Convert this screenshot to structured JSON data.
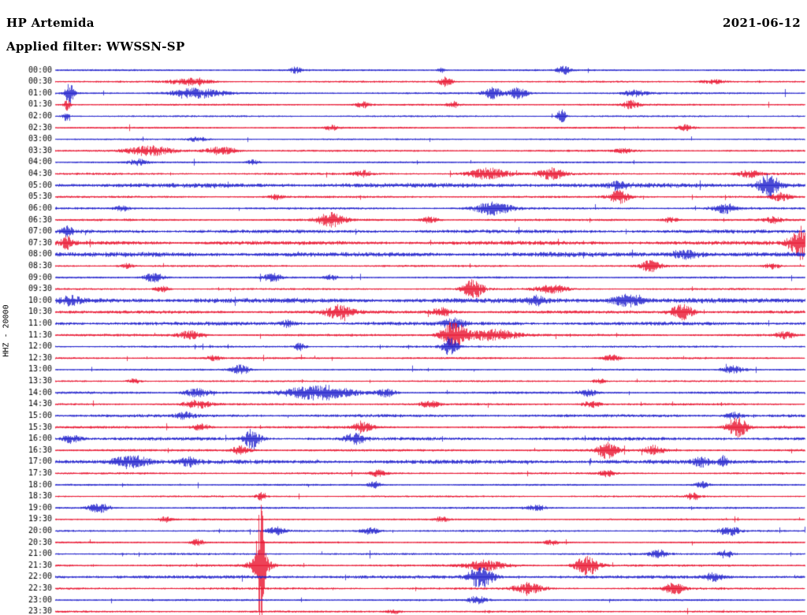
{
  "header": {
    "station": "HP Artemida",
    "date": "2021-06-12",
    "filter_label": "Applied filter: WWSSN-SP"
  },
  "axis": {
    "channel_label": "HHZ - 20000"
  },
  "chart_data": {
    "type": "line",
    "subtype": "helicorder-seismogram",
    "title": "HP Artemida 2021-06-12 HHZ helicorder, filter WWSSN-SP",
    "row_duration_min": 30,
    "palette": {
      "blue": "#2020cc",
      "red": "#e8112d"
    },
    "rows": [
      {
        "time": "00:00",
        "color": "blue",
        "noise": 1.0,
        "events": [
          [
            375,
            4,
            5
          ],
          [
            560,
            3,
            4
          ],
          [
            715,
            5,
            6
          ]
        ]
      },
      {
        "time": "00:30",
        "color": "red",
        "noise": 1.0,
        "events": [
          [
            240,
            4,
            18
          ],
          [
            565,
            6,
            6
          ],
          [
            905,
            3,
            12
          ]
        ]
      },
      {
        "time": "01:00",
        "color": "blue",
        "noise": 1.1,
        "events": [
          [
            88,
            13,
            4
          ],
          [
            250,
            6,
            22
          ],
          [
            625,
            7,
            8
          ],
          [
            657,
            7,
            8
          ],
          [
            805,
            4,
            10
          ]
        ]
      },
      {
        "time": "01:30",
        "color": "red",
        "noise": 1.0,
        "events": [
          [
            85,
            7,
            3
          ],
          [
            460,
            4,
            6
          ],
          [
            575,
            4,
            5
          ],
          [
            800,
            5,
            8
          ]
        ]
      },
      {
        "time": "02:00",
        "color": "blue",
        "noise": 1.0,
        "events": [
          [
            83,
            6,
            3
          ],
          [
            712,
            9,
            4
          ]
        ]
      },
      {
        "time": "02:30",
        "color": "red",
        "noise": 1.0,
        "events": [
          [
            420,
            3,
            6
          ],
          [
            870,
            4,
            8
          ]
        ]
      },
      {
        "time": "03:00",
        "color": "blue",
        "noise": 0.9,
        "events": [
          [
            250,
            3,
            8
          ]
        ]
      },
      {
        "time": "03:30",
        "color": "red",
        "noise": 1.1,
        "events": [
          [
            190,
            6,
            20
          ],
          [
            280,
            5,
            14
          ],
          [
            790,
            3,
            8
          ]
        ]
      },
      {
        "time": "04:00",
        "color": "blue",
        "noise": 1.0,
        "events": [
          [
            175,
            4,
            8
          ],
          [
            320,
            3,
            6
          ]
        ]
      },
      {
        "time": "04:30",
        "color": "red",
        "noise": 1.2,
        "events": [
          [
            460,
            4,
            8
          ],
          [
            620,
            7,
            18
          ],
          [
            700,
            7,
            12
          ],
          [
            950,
            4,
            10
          ]
        ]
      },
      {
        "time": "05:00",
        "color": "blue",
        "noise": 2.4,
        "events": [
          [
            785,
            5,
            8
          ],
          [
            975,
            15,
            9
          ]
        ]
      },
      {
        "time": "05:30",
        "color": "red",
        "noise": 1.2,
        "events": [
          [
            350,
            3,
            6
          ],
          [
            785,
            8,
            9
          ],
          [
            990,
            5,
            8
          ]
        ]
      },
      {
        "time": "06:00",
        "color": "blue",
        "noise": 1.2,
        "events": [
          [
            155,
            3,
            6
          ],
          [
            625,
            8,
            16
          ],
          [
            920,
            6,
            10
          ]
        ]
      },
      {
        "time": "06:30",
        "color": "red",
        "noise": 1.2,
        "events": [
          [
            420,
            9,
            12
          ],
          [
            545,
            4,
            8
          ],
          [
            850,
            3,
            8
          ],
          [
            980,
            4,
            8
          ]
        ]
      },
      {
        "time": "07:00",
        "color": "blue",
        "noise": 1.9,
        "events": [
          [
            85,
            6,
            5
          ]
        ]
      },
      {
        "time": "07:30",
        "color": "red",
        "noise": 2.1,
        "events": [
          [
            85,
            8,
            5
          ],
          [
            1015,
            21,
            9
          ]
        ]
      },
      {
        "time": "08:00",
        "color": "blue",
        "noise": 2.5,
        "events": [
          [
            870,
            5,
            14
          ]
        ]
      },
      {
        "time": "08:30",
        "color": "red",
        "noise": 1.1,
        "events": [
          [
            160,
            3,
            6
          ],
          [
            825,
            7,
            9
          ],
          [
            980,
            4,
            7
          ]
        ]
      },
      {
        "time": "09:00",
        "color": "blue",
        "noise": 1.1,
        "events": [
          [
            195,
            6,
            9
          ],
          [
            345,
            5,
            8
          ],
          [
            420,
            3,
            6
          ]
        ]
      },
      {
        "time": "09:30",
        "color": "red",
        "noise": 1.1,
        "events": [
          [
            205,
            4,
            6
          ],
          [
            600,
            12,
            9
          ],
          [
            700,
            5,
            14
          ]
        ]
      },
      {
        "time": "10:00",
        "color": "blue",
        "noise": 2.6,
        "events": [
          [
            90,
            5,
            8
          ],
          [
            680,
            5,
            8
          ],
          [
            795,
            7,
            14
          ]
        ]
      },
      {
        "time": "10:30",
        "color": "red",
        "noise": 1.7,
        "events": [
          [
            430,
            8,
            12
          ],
          [
            560,
            5,
            10
          ],
          [
            865,
            10,
            10
          ]
        ]
      },
      {
        "time": "11:00",
        "color": "blue",
        "noise": 2.0,
        "events": [
          [
            365,
            4,
            6
          ],
          [
            575,
            6,
            9
          ]
        ]
      },
      {
        "time": "11:30",
        "color": "red",
        "noise": 1.3,
        "events": [
          [
            240,
            5,
            10
          ],
          [
            575,
            17,
            11
          ],
          [
            625,
            7,
            22
          ],
          [
            995,
            4,
            8
          ]
        ]
      },
      {
        "time": "12:00",
        "color": "blue",
        "noise": 1.1,
        "events": [
          [
            380,
            5,
            5
          ],
          [
            570,
            12,
            7
          ]
        ]
      },
      {
        "time": "12:30",
        "color": "red",
        "noise": 1.1,
        "events": [
          [
            270,
            3,
            6
          ],
          [
            775,
            4,
            8
          ]
        ]
      },
      {
        "time": "13:00",
        "color": "blue",
        "noise": 1.0,
        "events": [
          [
            305,
            6,
            8
          ],
          [
            930,
            5,
            10
          ]
        ]
      },
      {
        "time": "13:30",
        "color": "red",
        "noise": 1.0,
        "events": [
          [
            170,
            3,
            6
          ],
          [
            760,
            3,
            6
          ]
        ]
      },
      {
        "time": "14:00",
        "color": "blue",
        "noise": 1.3,
        "events": [
          [
            250,
            5,
            12
          ],
          [
            405,
            9,
            30
          ],
          [
            490,
            5,
            8
          ],
          [
            745,
            4,
            8
          ]
        ]
      },
      {
        "time": "14:30",
        "color": "red",
        "noise": 1.2,
        "events": [
          [
            250,
            5,
            12
          ],
          [
            545,
            4,
            8
          ],
          [
            750,
            4,
            8
          ]
        ]
      },
      {
        "time": "15:00",
        "color": "blue",
        "noise": 1.6,
        "events": [
          [
            235,
            4,
            8
          ],
          [
            930,
            4,
            8
          ]
        ]
      },
      {
        "time": "15:30",
        "color": "red",
        "noise": 1.3,
        "events": [
          [
            255,
            4,
            8
          ],
          [
            460,
            6,
            9
          ],
          [
            935,
            12,
            9
          ]
        ]
      },
      {
        "time": "16:00",
        "color": "blue",
        "noise": 1.8,
        "events": [
          [
            90,
            5,
            8
          ],
          [
            320,
            13,
            7
          ],
          [
            450,
            6,
            9
          ]
        ]
      },
      {
        "time": "16:30",
        "color": "red",
        "noise": 1.3,
        "events": [
          [
            305,
            5,
            8
          ],
          [
            770,
            10,
            9
          ],
          [
            830,
            6,
            8
          ]
        ]
      },
      {
        "time": "17:00",
        "color": "blue",
        "noise": 2.2,
        "events": [
          [
            165,
            8,
            16
          ],
          [
            240,
            5,
            8
          ],
          [
            890,
            6,
            7
          ],
          [
            918,
            6,
            5
          ]
        ]
      },
      {
        "time": "17:30",
        "color": "red",
        "noise": 1.1,
        "events": [
          [
            480,
            4,
            7
          ],
          [
            770,
            4,
            6
          ]
        ]
      },
      {
        "time": "18:00",
        "color": "blue",
        "noise": 1.0,
        "events": [
          [
            475,
            4,
            6
          ],
          [
            890,
            4,
            6
          ]
        ]
      },
      {
        "time": "18:30",
        "color": "red",
        "noise": 1.0,
        "events": [
          [
            330,
            5,
            4
          ],
          [
            880,
            5,
            6
          ]
        ]
      },
      {
        "time": "19:00",
        "color": "blue",
        "noise": 1.1,
        "events": [
          [
            125,
            6,
            9
          ],
          [
            680,
            4,
            8
          ]
        ]
      },
      {
        "time": "19:30",
        "color": "red",
        "noise": 1.0,
        "events": [
          [
            210,
            3,
            6
          ],
          [
            560,
            3,
            6
          ]
        ]
      },
      {
        "time": "20:00",
        "color": "blue",
        "noise": 1.1,
        "events": [
          [
            350,
            5,
            8
          ],
          [
            470,
            4,
            9
          ],
          [
            925,
            6,
            9
          ]
        ]
      },
      {
        "time": "20:30",
        "color": "red",
        "noise": 1.0,
        "events": [
          [
            250,
            4,
            6
          ],
          [
            700,
            3,
            6
          ]
        ]
      },
      {
        "time": "21:00",
        "color": "blue",
        "noise": 1.1,
        "events": [
          [
            835,
            5,
            8
          ],
          [
            920,
            5,
            7
          ]
        ]
      },
      {
        "time": "21:30",
        "color": "red",
        "noise": 1.2,
        "events": [
          [
            330,
            85,
            3
          ],
          [
            330,
            15,
            9
          ],
          [
            615,
            6,
            18
          ],
          [
            745,
            12,
            11
          ]
        ]
      },
      {
        "time": "22:00",
        "color": "blue",
        "noise": 1.8,
        "events": [
          [
            610,
            13,
            11
          ],
          [
            905,
            5,
            8
          ]
        ]
      },
      {
        "time": "22:30",
        "color": "red",
        "noise": 1.2,
        "events": [
          [
            670,
            6,
            13
          ],
          [
            855,
            7,
            9
          ]
        ]
      },
      {
        "time": "23:00",
        "color": "blue",
        "noise": 1.1,
        "events": [
          [
            605,
            5,
            8
          ]
        ]
      },
      {
        "time": "23:30",
        "color": "red",
        "noise": 1.1,
        "events": [
          [
            500,
            3,
            6
          ]
        ]
      }
    ]
  }
}
